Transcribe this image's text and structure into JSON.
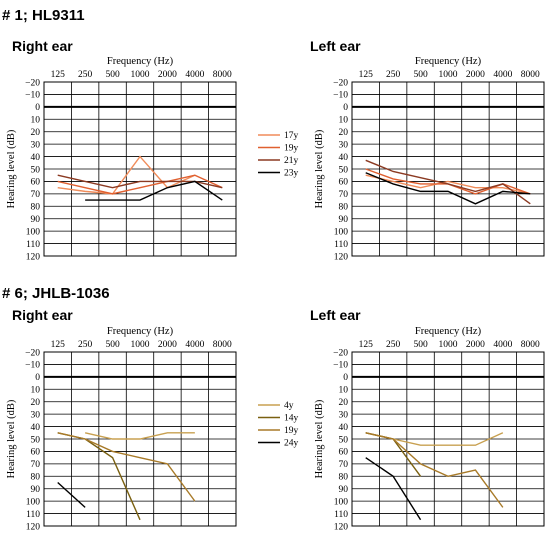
{
  "sections": [
    {
      "title": "# 1; HL9311"
    },
    {
      "title": "# 6; JHLB-1036"
    }
  ],
  "colors": {
    "17y": "#f08c5a",
    "19y": "#e06030",
    "21y": "#8b3a22",
    "23y": "#000000",
    "4y": "#c8a050",
    "14y": "#7a6010",
    "19y_b": "#a87a28",
    "24y": "#000000"
  },
  "chart_data": [
    {
      "type": "line",
      "title": "Right ear",
      "xlabel": "Frequency (Hz)",
      "ylabel": "Hearing level (dB)",
      "categories": [
        "125",
        "250",
        "500",
        "1000",
        "2000",
        "4000",
        "8000"
      ],
      "yticks": [
        -20,
        -10,
        0,
        10,
        20,
        30,
        40,
        50,
        60,
        70,
        80,
        90,
        100,
        110,
        120
      ],
      "ylim": [
        -20,
        120
      ],
      "y_inverted": true,
      "series": [
        {
          "name": "17y",
          "color": "#f08c5a",
          "values": [
            65,
            68,
            70,
            40,
            65,
            55,
            null
          ]
        },
        {
          "name": "19y",
          "color": "#e06030",
          "values": [
            60,
            65,
            70,
            65,
            60,
            55,
            65
          ]
        },
        {
          "name": "21y",
          "color": "#8b3a22",
          "values": [
            55,
            60,
            65,
            60,
            60,
            60,
            65
          ]
        },
        {
          "name": "23y",
          "color": "#000000",
          "values": [
            null,
            75,
            75,
            75,
            65,
            60,
            75
          ]
        }
      ]
    },
    {
      "type": "line",
      "title": "Left ear",
      "xlabel": "Frequency (Hz)",
      "ylabel": "Hearing level (dB)",
      "categories": [
        "125",
        "250",
        "500",
        "1000",
        "2000",
        "4000",
        "8000"
      ],
      "yticks": [
        -20,
        -10,
        0,
        10,
        20,
        30,
        40,
        50,
        60,
        70,
        80,
        90,
        100,
        110,
        120
      ],
      "ylim": [
        -20,
        120
      ],
      "y_inverted": true,
      "series": [
        {
          "name": "17y",
          "color": "#f08c5a",
          "values": [
            55,
            60,
            65,
            60,
            65,
            65,
            70
          ]
        },
        {
          "name": "19y",
          "color": "#e06030",
          "values": [
            50,
            58,
            62,
            62,
            70,
            62,
            70
          ]
        },
        {
          "name": "21y",
          "color": "#8b3a22",
          "values": [
            43,
            52,
            57,
            62,
            68,
            62,
            78
          ]
        },
        {
          "name": "23y",
          "color": "#000000",
          "values": [
            53,
            62,
            68,
            68,
            78,
            68,
            70
          ]
        }
      ]
    },
    {
      "type": "line",
      "title": "Right ear",
      "xlabel": "Frequency (Hz)",
      "ylabel": "Hearing level (dB)",
      "categories": [
        "125",
        "250",
        "500",
        "1000",
        "2000",
        "4000",
        "8000"
      ],
      "yticks": [
        -20,
        -10,
        0,
        10,
        20,
        30,
        40,
        50,
        60,
        70,
        80,
        90,
        100,
        110,
        120
      ],
      "ylim": [
        -20,
        120
      ],
      "y_inverted": true,
      "series": [
        {
          "name": "4y",
          "color": "#c8a050",
          "values": [
            null,
            45,
            50,
            50,
            45,
            45,
            null
          ]
        },
        {
          "name": "14y",
          "color": "#7a6010",
          "values": [
            45,
            50,
            65,
            115,
            null,
            null,
            null
          ]
        },
        {
          "name": "19y",
          "color": "#a87a28",
          "values": [
            45,
            50,
            60,
            65,
            70,
            100,
            null
          ]
        },
        {
          "name": "24y",
          "color": "#000000",
          "values": [
            85,
            105,
            null,
            null,
            null,
            null,
            null
          ]
        }
      ]
    },
    {
      "type": "line",
      "title": "Left ear",
      "xlabel": "Frequency (Hz)",
      "ylabel": "Hearing level (dB)",
      "categories": [
        "125",
        "250",
        "500",
        "1000",
        "2000",
        "4000",
        "8000"
      ],
      "yticks": [
        -20,
        -10,
        0,
        10,
        20,
        30,
        40,
        50,
        60,
        70,
        80,
        90,
        100,
        110,
        120
      ],
      "ylim": [
        -20,
        120
      ],
      "y_inverted": true,
      "series": [
        {
          "name": "4y",
          "color": "#c8a050",
          "values": [
            45,
            50,
            55,
            55,
            55,
            45,
            null
          ]
        },
        {
          "name": "14y",
          "color": "#7a6010",
          "values": [
            45,
            50,
            80,
            null,
            null,
            null,
            null
          ]
        },
        {
          "name": "19y",
          "color": "#a87a28",
          "values": [
            45,
            50,
            70,
            80,
            75,
            105,
            null
          ]
        },
        {
          "name": "24y",
          "color": "#000000",
          "values": [
            65,
            80,
            115,
            null,
            null,
            null,
            null
          ]
        }
      ]
    }
  ],
  "legends": [
    {
      "items": [
        {
          "label": "17y",
          "color": "#f08c5a"
        },
        {
          "label": "19y",
          "color": "#e06030"
        },
        {
          "label": "21y",
          "color": "#8b3a22"
        },
        {
          "label": "23y",
          "color": "#000000"
        }
      ]
    },
    {
      "items": [
        {
          "label": "4y",
          "color": "#c8a050"
        },
        {
          "label": "14y",
          "color": "#7a6010"
        },
        {
          "label": "19y",
          "color": "#a87a28"
        },
        {
          "label": "24y",
          "color": "#000000"
        }
      ]
    }
  ]
}
